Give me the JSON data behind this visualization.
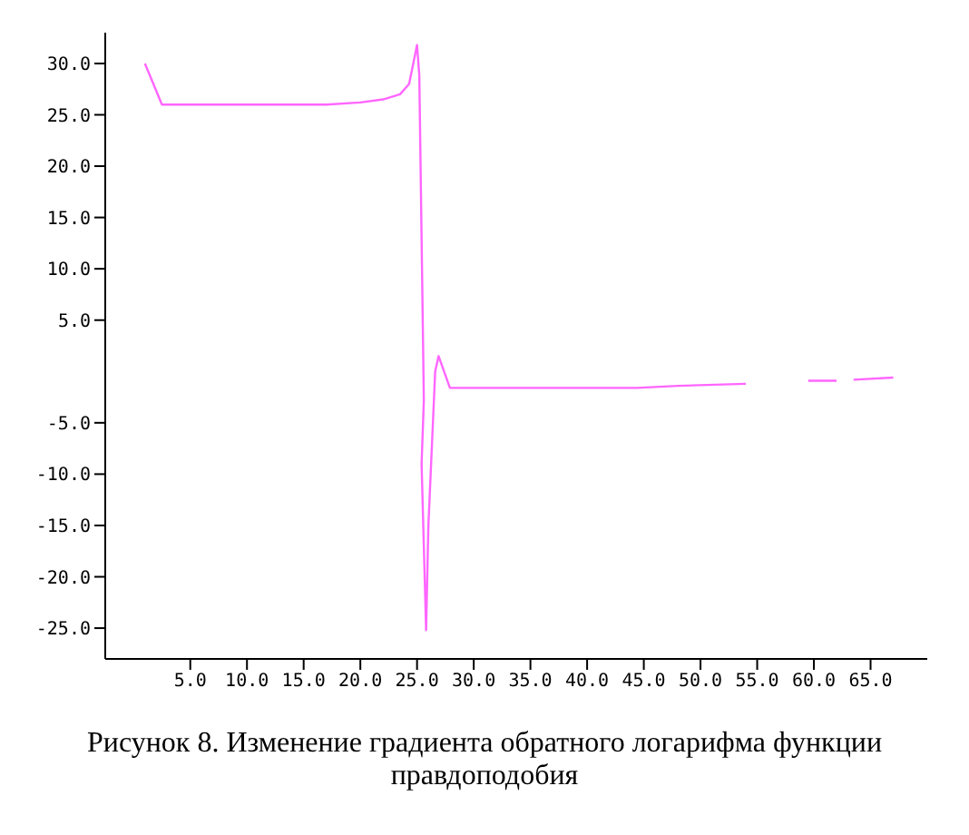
{
  "chart_data": {
    "type": "line",
    "title": "Рисунок 8. Изменение градиента обратного логарифма функции правдоподобия",
    "x": [
      1,
      2.5,
      5,
      10,
      15,
      17,
      20,
      22,
      23.5,
      24.3,
      25,
      25.2,
      25.6,
      25.4,
      25.8,
      26,
      26.6,
      26.9,
      27.9,
      35,
      44.4,
      48,
      54,
      55.8,
      59.5,
      62,
      62.7,
      63.5,
      67
    ],
    "series": [
      {
        "color": "#ff66ff",
        "values": [
          30,
          26,
          26,
          26,
          26,
          26,
          26.2,
          26.5,
          27,
          28,
          31.8,
          28.8,
          -2.8,
          -9,
          -25.2,
          -15,
          0,
          1.5,
          -1.6,
          -1.6,
          -1.6,
          -1.4,
          -1.2,
          null,
          -0.9,
          -0.9,
          null,
          -0.8,
          -0.6
        ]
      }
    ],
    "xlim": [
      -2.5,
      70
    ],
    "ylim": [
      -28,
      33
    ],
    "xticks": [
      {
        "value": 5,
        "label": "5.0"
      },
      {
        "value": 10,
        "label": "10.0"
      },
      {
        "value": 15,
        "label": "15.0"
      },
      {
        "value": 20,
        "label": "20.0"
      },
      {
        "value": 25,
        "label": "25.0"
      },
      {
        "value": 30,
        "label": "30.0"
      },
      {
        "value": 35,
        "label": "35.0"
      },
      {
        "value": 40,
        "label": "40.0"
      },
      {
        "value": 45,
        "label": "45.0"
      },
      {
        "value": 50,
        "label": "50.0"
      },
      {
        "value": 55,
        "label": "55.0"
      },
      {
        "value": 60,
        "label": "60.0"
      },
      {
        "value": 65,
        "label": "65.0"
      }
    ],
    "yticks": [
      {
        "value": -25,
        "label": "-25.0"
      },
      {
        "value": -20,
        "label": "-20.0"
      },
      {
        "value": -15,
        "label": "-15.0"
      },
      {
        "value": -10,
        "label": "-10.0"
      },
      {
        "value": -5,
        "label": "-5.0"
      },
      {
        "value": 5,
        "label": "5.0"
      },
      {
        "value": 10,
        "label": "10.0"
      },
      {
        "value": 15,
        "label": "15.0"
      },
      {
        "value": 20,
        "label": "20.0"
      },
      {
        "value": 25,
        "label": "25.0"
      },
      {
        "value": 30,
        "label": "30.0"
      }
    ],
    "grid": false,
    "legend": false,
    "marker": "none",
    "line_style": "solid"
  }
}
